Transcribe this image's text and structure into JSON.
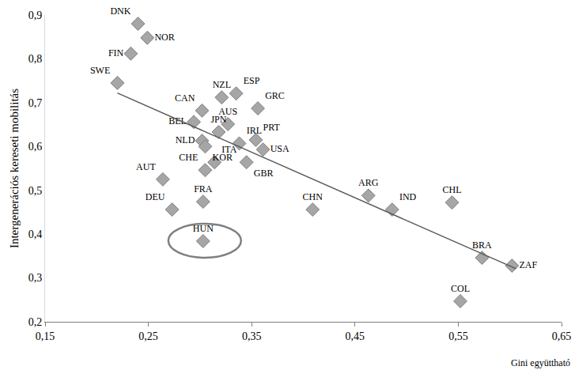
{
  "chart_data": {
    "type": "scatter",
    "xlabel": "Gini együttható",
    "ylabel": "Intergenerációs kereseti mobilitás",
    "xlim": [
      0.15,
      0.65
    ],
    "xticks": [
      {
        "value": 0.15,
        "label": "0,15"
      },
      {
        "value": 0.25,
        "label": "0,25"
      },
      {
        "value": 0.35,
        "label": "0,35"
      },
      {
        "value": 0.45,
        "label": "0,45"
      },
      {
        "value": 0.55,
        "label": "0,55"
      },
      {
        "value": 0.65,
        "label": "0,65"
      }
    ],
    "ylim": [
      0.2,
      0.9
    ],
    "yticks": [
      {
        "value": 0.2,
        "label": "0,2"
      },
      {
        "value": 0.3,
        "label": "0,3"
      },
      {
        "value": 0.4,
        "label": "0,4"
      },
      {
        "value": 0.5,
        "label": "0,5"
      },
      {
        "value": 0.6,
        "label": "0,6"
      },
      {
        "value": 0.7,
        "label": "0,7"
      },
      {
        "value": 0.8,
        "label": "0,8"
      },
      {
        "value": 0.9,
        "label": "0,9"
      }
    ],
    "grid": false,
    "series": [
      {
        "type": "scatter",
        "marker": "diamond",
        "color": "#a6a6a6",
        "labels": [
          "DNK",
          "NOR",
          "FIN",
          "SWE",
          "NZL",
          "ESP",
          "CAN",
          "GRC",
          "AUS",
          "BEL",
          "JPN",
          "NLD",
          "KOR",
          "IRL",
          "PRT",
          "USA",
          "ITA",
          "CHE",
          "GBR",
          "AUT",
          "DEU",
          "FRA",
          "HUN",
          "CHN",
          "ARG",
          "IND",
          "CHL",
          "BRA",
          "ZAF",
          "COL"
        ],
        "x": [
          0.24,
          0.249,
          0.233,
          0.22,
          0.321,
          0.335,
          0.302,
          0.356,
          0.327,
          0.294,
          0.318,
          0.302,
          0.305,
          0.338,
          0.354,
          0.361,
          0.314,
          0.305,
          0.345,
          0.264,
          0.273,
          0.303,
          0.303,
          0.409,
          0.463,
          0.486,
          0.544,
          0.573,
          0.602,
          0.552
        ],
        "values": [
          0.88,
          0.848,
          0.812,
          0.745,
          0.712,
          0.721,
          0.682,
          0.687,
          0.651,
          0.656,
          0.633,
          0.613,
          0.6,
          0.607,
          0.615,
          0.593,
          0.564,
          0.546,
          0.564,
          0.525,
          0.456,
          0.474,
          0.384,
          0.456,
          0.488,
          0.456,
          0.472,
          0.346,
          0.328,
          0.247
        ]
      },
      {
        "type": "line",
        "color": "#595959",
        "line_style": "solid",
        "x": [
          0.22,
          0.606
        ],
        "values": [
          0.722,
          0.321
        ]
      }
    ],
    "highlight": "HUN"
  }
}
